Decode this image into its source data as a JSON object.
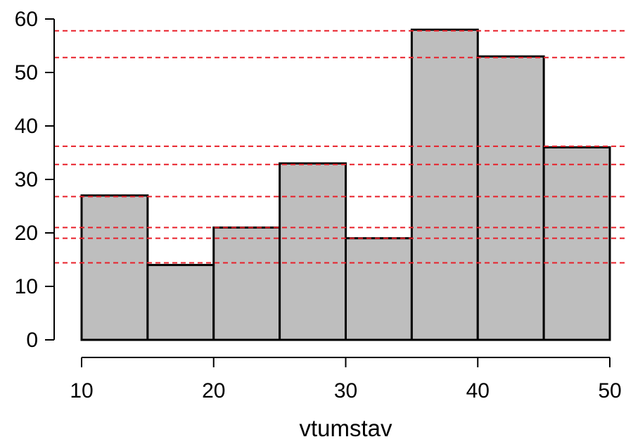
{
  "chart_data": {
    "type": "bar",
    "subtype": "histogram",
    "xlabel": "vtumstav",
    "ylabel": "",
    "bin_edges": [
      10,
      15,
      20,
      25,
      30,
      35,
      40,
      45,
      50
    ],
    "values": [
      27,
      14,
      21,
      33,
      19,
      58,
      53,
      36
    ],
    "xlim": [
      10,
      50
    ],
    "ylim": [
      0,
      60
    ],
    "x_ticks": [
      10,
      20,
      30,
      40,
      50
    ],
    "y_ticks": [
      0,
      10,
      20,
      30,
      40,
      50,
      60
    ],
    "reference_lines": [
      14.4,
      19,
      21,
      26.8,
      32.8,
      36.2,
      52.8,
      57.8
    ],
    "grid": false,
    "colors": {
      "bar_fill": "#bebebe",
      "bar_stroke": "#000000",
      "reference_line": "#e8202a",
      "axis": "#000000"
    }
  }
}
